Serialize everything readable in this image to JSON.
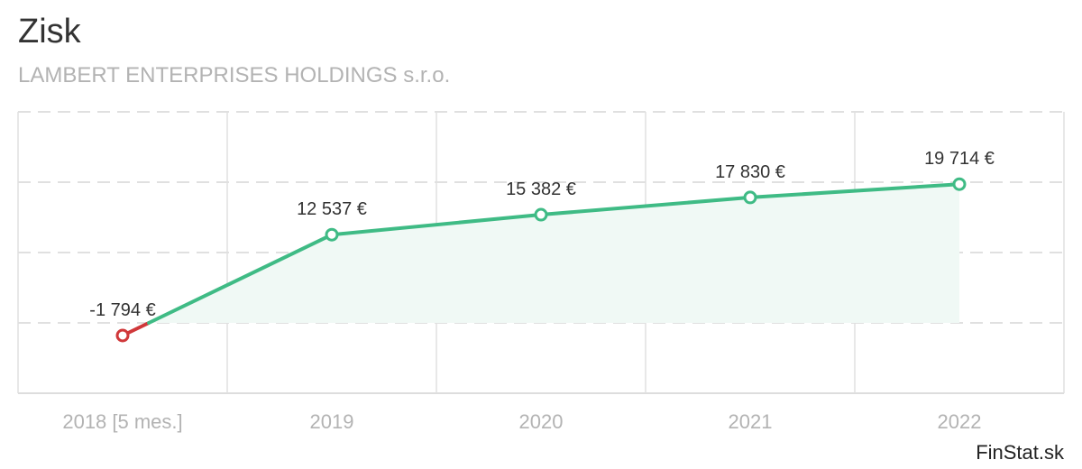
{
  "chart_data": {
    "type": "line",
    "title": "Zisk",
    "subtitle": "LAMBERT ENTERPRISES HOLDINGS s.r.o.",
    "categories": [
      "2018 [5 mes.]",
      "2019",
      "2020",
      "2021",
      "2022"
    ],
    "series": [
      {
        "values": [
          -1794,
          12537,
          15382,
          17830,
          19714
        ],
        "labels": [
          "-1 794 €",
          "12 537 €",
          "15 382 €",
          "17 830 €",
          "19 714 €"
        ]
      }
    ],
    "ylim": [
      -10000,
      30000
    ],
    "grid": true,
    "colors": {
      "positive": "#3fbb85",
      "negative": "#d0383a",
      "area": "#f0f9f5",
      "grid": "#e0e0e0"
    }
  },
  "credit": "FinStat.sk"
}
